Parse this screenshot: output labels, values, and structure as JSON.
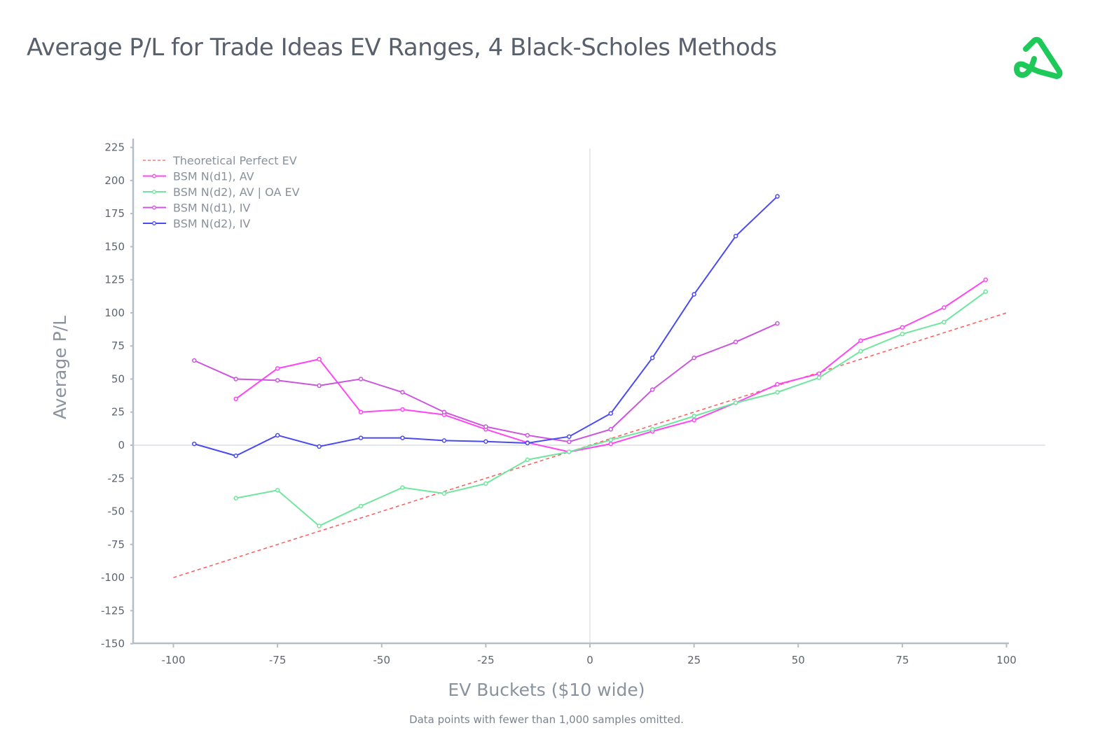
{
  "title": "Average P/L for Trade Ideas EV Ranges, 4 Black-Scholes Methods",
  "logo": {
    "brand_color": "#1ec95a",
    "icon": "green-triangle-loop-logo"
  },
  "chart_data": {
    "type": "line",
    "title": "Average P/L for Trade Ideas EV Ranges, 4 Black-Scholes Methods",
    "xlabel": "EV Buckets ($10 wide)",
    "ylabel": "Average P/L",
    "footnote": "Data points with fewer than 1,000 samples omitted.",
    "xlim": [
      -110,
      100
    ],
    "ylim": [
      -150,
      225
    ],
    "xticks": [
      -100,
      -75,
      -50,
      -25,
      0,
      25,
      50,
      75,
      100
    ],
    "yticks": [
      -150,
      -125,
      -100,
      -75,
      -50,
      -25,
      0,
      25,
      50,
      75,
      100,
      125,
      150,
      175,
      200,
      225
    ],
    "legend_position": "top-left",
    "grid": false,
    "series": [
      {
        "name": "Theoretical Perfect EV",
        "color": "#ff5a5a",
        "dashed": true,
        "markers": false,
        "x": [
          -100,
          100
        ],
        "y": [
          -100,
          100
        ]
      },
      {
        "name": "BSM N(d1), AV",
        "color": "#ff44f5",
        "markers": true,
        "x": [
          -85,
          -75,
          -65,
          -55,
          -45,
          -35,
          -25,
          -15,
          -5,
          5,
          15,
          25,
          35,
          45,
          55,
          65,
          75,
          85,
          95
        ],
        "y": [
          35,
          58,
          65,
          25,
          27,
          23,
          12,
          2,
          -5,
          1,
          10.5,
          19,
          32,
          46,
          54,
          79,
          89,
          104,
          125
        ]
      },
      {
        "name": "BSM N(d2), AV | OA EV",
        "color": "#6ee69c",
        "markers": true,
        "x": [
          -85,
          -75,
          -65,
          -55,
          -45,
          -35,
          -25,
          -15,
          -5,
          5,
          15,
          25,
          35,
          45,
          55,
          65,
          75,
          85,
          95
        ],
        "y": [
          -40,
          -34,
          -61,
          -46,
          -32,
          -36.5,
          -29,
          -11,
          -5,
          4,
          12,
          22,
          32,
          40,
          51,
          71,
          84,
          93,
          116
        ]
      },
      {
        "name": "BSM N(d1), IV",
        "color": "#cc55dd",
        "markers": true,
        "x": [
          -95,
          -85,
          -75,
          -65,
          -55,
          -45,
          -35,
          -25,
          -15,
          -5,
          5,
          15,
          25,
          35,
          45
        ],
        "y": [
          64,
          50,
          49,
          45,
          50,
          40,
          25,
          14,
          7.5,
          2.6,
          12,
          42,
          66,
          78,
          92
        ]
      },
      {
        "name": "BSM N(d2), IV",
        "color": "#4a4af0",
        "markers": true,
        "x": [
          -95,
          -85,
          -75,
          -65,
          -55,
          -45,
          -35,
          -25,
          -15,
          -5,
          5,
          15,
          25,
          35,
          45
        ],
        "y": [
          1,
          -8,
          7.5,
          -1,
          5.5,
          5.5,
          3.5,
          2.8,
          1.6,
          6.5,
          24,
          66,
          114,
          158,
          188
        ]
      }
    ]
  }
}
